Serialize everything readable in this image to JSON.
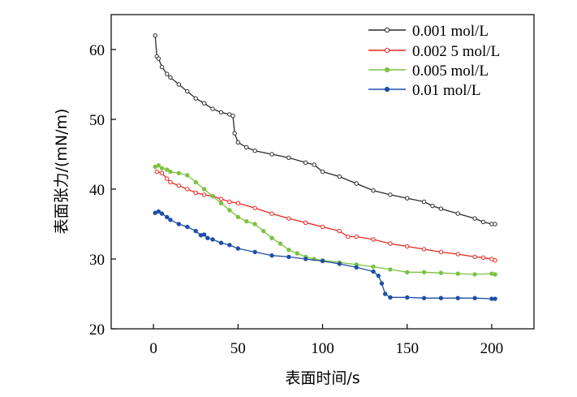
{
  "chart_data": {
    "type": "line",
    "xlabel": "表面时间/s",
    "ylabel": "表面张力/(mN/m)",
    "xlim": [
      -25,
      225
    ],
    "ylim": [
      20,
      65
    ],
    "xticks": [
      0,
      50,
      100,
      150,
      200
    ],
    "yticks": [
      20,
      30,
      40,
      50,
      60
    ],
    "grid": false,
    "legend_position": "top-right",
    "series": [
      {
        "name": "0.001 mol/L",
        "color": "#2b2b2b",
        "marker": "open-circle",
        "x": [
          1,
          2,
          3,
          5,
          8,
          10,
          15,
          20,
          25,
          30,
          35,
          40,
          45,
          47,
          48,
          50,
          55,
          60,
          70,
          80,
          90,
          95,
          100,
          110,
          120,
          130,
          140,
          150,
          160,
          165,
          170,
          180,
          190,
          195,
          200,
          202
        ],
        "y": [
          62,
          59,
          58.7,
          57.5,
          56.5,
          56,
          55,
          54,
          53,
          52.3,
          51.5,
          51,
          50.7,
          50.5,
          48,
          46.7,
          46,
          45.5,
          45,
          44.5,
          43.8,
          43.5,
          42.5,
          41.8,
          40.8,
          39.8,
          39.2,
          38.7,
          38.2,
          37.6,
          37.2,
          36.5,
          35.8,
          35.3,
          35,
          35
        ]
      },
      {
        "name": "0.002 5 mol/L",
        "color": "#e8261f",
        "marker": "open-circle",
        "x": [
          2,
          5,
          8,
          10,
          15,
          20,
          25,
          30,
          35,
          40,
          45,
          50,
          60,
          70,
          80,
          90,
          100,
          110,
          115,
          120,
          130,
          140,
          150,
          160,
          170,
          180,
          190,
          195,
          200,
          202
        ],
        "y": [
          42.5,
          42.3,
          41.5,
          41,
          40.5,
          40,
          39.5,
          39.2,
          39,
          38.6,
          38.2,
          38,
          37.3,
          36.5,
          35.8,
          35.2,
          34.6,
          34,
          33.2,
          33.2,
          32.8,
          32.2,
          31.8,
          31.4,
          31,
          30.7,
          30.3,
          30.2,
          30,
          29.8
        ]
      },
      {
        "name": "0.005 mol/L",
        "color": "#7cc242",
        "marker": "filled-circle",
        "x": [
          1,
          3,
          5,
          8,
          10,
          15,
          20,
          25,
          30,
          35,
          40,
          45,
          50,
          55,
          60,
          65,
          70,
          75,
          80,
          85,
          90,
          95,
          100,
          110,
          120,
          130,
          140,
          150,
          160,
          170,
          180,
          190,
          200,
          202
        ],
        "y": [
          43.2,
          43.4,
          43,
          42.8,
          42.5,
          42.3,
          42,
          41,
          40,
          39,
          38,
          37,
          36,
          35.4,
          35,
          34,
          33,
          32.2,
          31.3,
          30.8,
          30.3,
          30,
          29.8,
          29.5,
          29.2,
          28.9,
          28.5,
          28.1,
          28.1,
          28,
          27.9,
          27.8,
          27.9,
          27.8
        ]
      },
      {
        "name": "0.01 mol/L",
        "color": "#1f4fa8",
        "marker": "filled-circle",
        "x": [
          1,
          3,
          5,
          8,
          10,
          15,
          20,
          25,
          28,
          30,
          32,
          35,
          40,
          45,
          50,
          60,
          70,
          80,
          90,
          100,
          110,
          120,
          130,
          133,
          135,
          137,
          140,
          150,
          160,
          170,
          180,
          190,
          200,
          202
        ],
        "y": [
          36.6,
          36.8,
          36.5,
          36,
          35.6,
          35,
          34.6,
          34,
          33.4,
          33.5,
          33,
          32.8,
          32.3,
          32,
          31.5,
          31,
          30.5,
          30.3,
          30,
          29.7,
          29.3,
          28.8,
          28.2,
          27.6,
          26.5,
          25,
          24.5,
          24.5,
          24.4,
          24.4,
          24.4,
          24.4,
          24.3,
          24.3
        ]
      }
    ]
  }
}
